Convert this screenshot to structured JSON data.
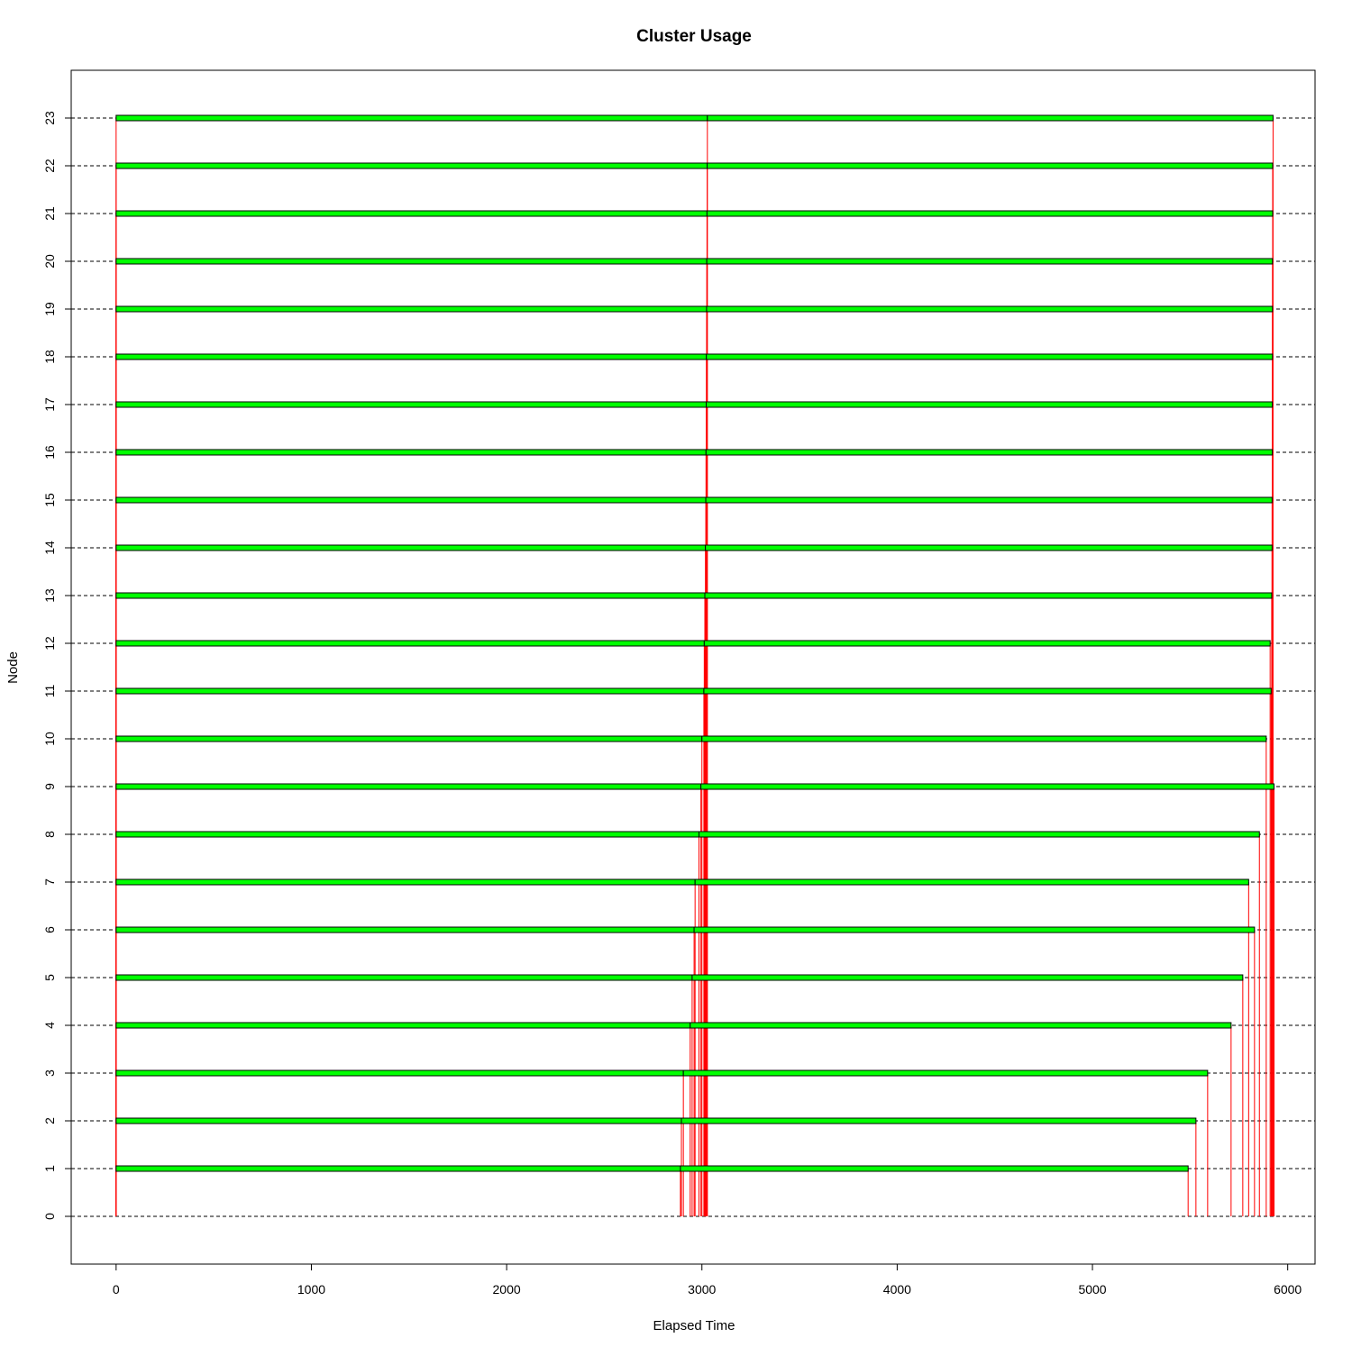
{
  "chart_data": {
    "type": "timeline",
    "title": "Cluster Usage",
    "xlabel": "Elapsed Time",
    "ylabel": "Node",
    "xlim": [
      -230,
      6140
    ],
    "ylim": [
      -1,
      24
    ],
    "x_ticks": [
      0,
      1000,
      2000,
      3000,
      4000,
      5000,
      6000
    ],
    "y_ticks": [
      0,
      1,
      2,
      3,
      4,
      5,
      6,
      7,
      8,
      9,
      10,
      11,
      12,
      13,
      14,
      15,
      16,
      17,
      18,
      19,
      20,
      21,
      22,
      23
    ],
    "grid": "horizontal dashed at each node",
    "colors": {
      "bar_fill": "#00ff00",
      "bar_border": "#000000",
      "task_line": "#ff0000",
      "grid": "#000000"
    },
    "nodes": [
      {
        "node": 1,
        "segments": [
          [
            0,
            2890
          ],
          [
            2890,
            5490
          ]
        ],
        "task_ends": [
          2890,
          5490
        ]
      },
      {
        "node": 2,
        "segments": [
          [
            0,
            2895
          ],
          [
            2895,
            5530
          ]
        ],
        "task_ends": [
          2895,
          5530
        ]
      },
      {
        "node": 3,
        "segments": [
          [
            0,
            2905
          ],
          [
            2905,
            5590
          ]
        ],
        "task_ends": [
          2905,
          5590
        ]
      },
      {
        "node": 4,
        "segments": [
          [
            0,
            2940
          ],
          [
            2940,
            5710
          ]
        ],
        "task_ends": [
          2940,
          5710
        ]
      },
      {
        "node": 5,
        "segments": [
          [
            0,
            2950
          ],
          [
            2950,
            5770
          ]
        ],
        "task_ends": [
          2950,
          5770
        ]
      },
      {
        "node": 6,
        "segments": [
          [
            0,
            2960
          ],
          [
            2960,
            5830
          ]
        ],
        "task_ends": [
          2960,
          5830
        ]
      },
      {
        "node": 7,
        "segments": [
          [
            0,
            2965
          ],
          [
            2965,
            5800
          ]
        ],
        "task_ends": [
          2965,
          5800
        ]
      },
      {
        "node": 8,
        "segments": [
          [
            0,
            2985
          ],
          [
            2985,
            5855
          ]
        ],
        "task_ends": [
          2985,
          5855
        ]
      },
      {
        "node": 9,
        "segments": [
          [
            0,
            2995
          ],
          [
            2995,
            5930
          ]
        ],
        "task_ends": [
          2995,
          5930
        ]
      },
      {
        "node": 10,
        "segments": [
          [
            0,
            3000
          ],
          [
            3000,
            5890
          ]
        ],
        "task_ends": [
          3000,
          5890
        ]
      },
      {
        "node": 11,
        "segments": [
          [
            0,
            3010
          ],
          [
            3010,
            5915
          ]
        ],
        "task_ends": [
          3010,
          5915
        ]
      },
      {
        "node": 12,
        "segments": [
          [
            0,
            3012
          ],
          [
            3012,
            5910
          ]
        ],
        "task_ends": [
          3012,
          5910
        ]
      },
      {
        "node": 13,
        "segments": [
          [
            0,
            3015
          ],
          [
            3015,
            5918
          ]
        ],
        "task_ends": [
          3015,
          5918
        ]
      },
      {
        "node": 14,
        "segments": [
          [
            0,
            3018
          ],
          [
            3018,
            5920
          ]
        ],
        "task_ends": [
          3018,
          5920
        ]
      },
      {
        "node": 15,
        "segments": [
          [
            0,
            3020
          ],
          [
            3020,
            5920
          ]
        ],
        "task_ends": [
          3020,
          5920
        ]
      },
      {
        "node": 16,
        "segments": [
          [
            0,
            3021
          ],
          [
            3021,
            5921
          ]
        ],
        "task_ends": [
          3021,
          5921
        ]
      },
      {
        "node": 17,
        "segments": [
          [
            0,
            3022
          ],
          [
            3022,
            5921
          ]
        ],
        "task_ends": [
          3022,
          5921
        ]
      },
      {
        "node": 18,
        "segments": [
          [
            0,
            3023
          ],
          [
            3023,
            5922
          ]
        ],
        "task_ends": [
          3023,
          5922
        ]
      },
      {
        "node": 19,
        "segments": [
          [
            0,
            3024
          ],
          [
            3024,
            5922
          ]
        ],
        "task_ends": [
          3024,
          5922
        ]
      },
      {
        "node": 20,
        "segments": [
          [
            0,
            3025
          ],
          [
            3025,
            5922
          ]
        ],
        "task_ends": [
          3025,
          5922
        ]
      },
      {
        "node": 21,
        "segments": [
          [
            0,
            3026
          ],
          [
            3026,
            5923
          ]
        ],
        "task_ends": [
          3026,
          5923
        ]
      },
      {
        "node": 22,
        "segments": [
          [
            0,
            3027
          ],
          [
            3027,
            5923
          ]
        ],
        "task_ends": [
          3027,
          5923
        ]
      },
      {
        "node": 23,
        "segments": [
          [
            0,
            3028
          ],
          [
            3028,
            5925
          ]
        ],
        "task_ends": [
          3028,
          5925
        ]
      }
    ]
  }
}
